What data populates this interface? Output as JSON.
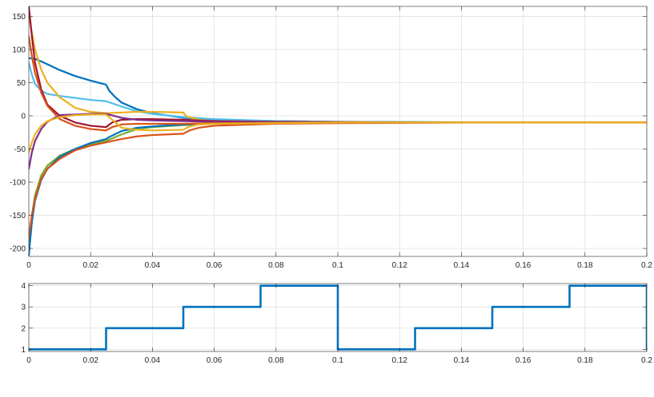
{
  "chart_data": [
    {
      "type": "line",
      "title": "",
      "xlabel": "",
      "ylabel": "",
      "xlim": [
        0,
        0.2
      ],
      "ylim": [
        -212,
        165
      ],
      "grid": true,
      "x_ticks": [
        0,
        0.02,
        0.04,
        0.06,
        0.08,
        0.1,
        0.12,
        0.14,
        0.16,
        0.18,
        0.2
      ],
      "x_tick_labels": [
        "0",
        "0.02",
        "0.04",
        "0.06",
        "0.08",
        "0.1",
        "0.12",
        "0.14",
        "0.16",
        "0.18",
        "0.2"
      ],
      "y_ticks": [
        -200,
        -150,
        -100,
        -50,
        0,
        50,
        100,
        150
      ],
      "y_tick_labels": [
        "-200",
        "-150",
        "-100",
        "-50",
        "0",
        "50",
        "100",
        "150"
      ],
      "series": [
        {
          "color": "#0072BD",
          "x": [
            0,
            0.002,
            0.005,
            0.01,
            0.015,
            0.02,
            0.025,
            0.026,
            0.028,
            0.03,
            0.035,
            0.04,
            0.05,
            0.06,
            0.08,
            0.1,
            0.15,
            0.2
          ],
          "y": [
            87,
            86,
            80,
            69,
            60,
            53,
            47,
            38,
            28,
            20,
            10,
            4,
            -3,
            -6,
            -8,
            -9,
            -10,
            -10
          ]
        },
        {
          "color": "#4DBEEE",
          "x": [
            0,
            0.001,
            0.002,
            0.004,
            0.006,
            0.01,
            0.015,
            0.02,
            0.025,
            0.03,
            0.035,
            0.04,
            0.05,
            0.06,
            0.08,
            0.1,
            0.15,
            0.2
          ],
          "y": [
            80,
            62,
            48,
            38,
            33,
            30,
            27,
            24,
            22,
            14,
            7,
            3,
            -2,
            -5,
            -8,
            -9,
            -10,
            -10
          ]
        },
        {
          "color": "#EDB120",
          "x": [
            0,
            0.001,
            0.002,
            0.004,
            0.006,
            0.01,
            0.015,
            0.02,
            0.025,
            0.03,
            0.035,
            0.04,
            0.05,
            0.051,
            0.055,
            0.06,
            0.08,
            0.1,
            0.15,
            0.2
          ],
          "y": [
            150,
            125,
            100,
            70,
            50,
            28,
            12,
            6,
            4,
            5,
            6,
            6,
            5,
            -1,
            -6,
            -8,
            -9,
            -9.5,
            -10,
            -10
          ]
        },
        {
          "color": "#A2142F",
          "x": [
            0,
            0.001,
            0.002,
            0.004,
            0.006,
            0.01,
            0.015,
            0.02,
            0.025,
            0.027,
            0.03,
            0.035,
            0.04,
            0.05,
            0.06,
            0.08,
            0.1,
            0.15,
            0.2
          ],
          "y": [
            165,
            120,
            80,
            40,
            17,
            0,
            -10,
            -15,
            -17,
            -10,
            -6,
            -5,
            -5,
            -6,
            -8,
            -9,
            -9.5,
            -10,
            -10
          ]
        },
        {
          "color": "#7E2F8E",
          "x": [
            0,
            0.001,
            0.002,
            0.004,
            0.006,
            0.01,
            0.015,
            0.02,
            0.025,
            0.03,
            0.035,
            0.04,
            0.05,
            0.06,
            0.08,
            0.1,
            0.15,
            0.2
          ],
          "y": [
            -80,
            -55,
            -38,
            -20,
            -9,
            1,
            2,
            3,
            3,
            -3,
            -6,
            -7,
            -8,
            -9,
            -9.5,
            -10,
            -10,
            -10
          ]
        },
        {
          "color": "#77AC30",
          "x": [
            0,
            0.001,
            0.002,
            0.004,
            0.006,
            0.01,
            0.015,
            0.02,
            0.025,
            0.03,
            0.035,
            0.04,
            0.05,
            0.06,
            0.08,
            0.1,
            0.15,
            0.2
          ],
          "y": [
            -190,
            -150,
            -120,
            -90,
            -75,
            -60,
            -50,
            -43,
            -38,
            -28,
            -20,
            -17,
            -14,
            -12,
            -11,
            -10,
            -10,
            -10
          ]
        },
        {
          "color": "#0072BD",
          "x": [
            0,
            0.001,
            0.002,
            0.004,
            0.006,
            0.01,
            0.015,
            0.02,
            0.025,
            0.026,
            0.03,
            0.035,
            0.04,
            0.05,
            0.06,
            0.08,
            0.1,
            0.15,
            0.2
          ],
          "y": [
            -210,
            -160,
            -128,
            -97,
            -80,
            -62,
            -50,
            -41,
            -35,
            -32,
            -23,
            -18,
            -16,
            -13,
            -12,
            -11,
            -10,
            -10,
            -10
          ]
        },
        {
          "color": "#D95319",
          "x": [
            0,
            0.001,
            0.002,
            0.004,
            0.006,
            0.01,
            0.015,
            0.02,
            0.025,
            0.03,
            0.035,
            0.04,
            0.045,
            0.05,
            0.052,
            0.055,
            0.06,
            0.08,
            0.1,
            0.15,
            0.2
          ],
          "y": [
            -183,
            -150,
            -125,
            -95,
            -80,
            -65,
            -52,
            -45,
            -40,
            -35,
            -31,
            -29,
            -28,
            -27,
            -22,
            -18,
            -15,
            -12,
            -11,
            -10,
            -10
          ]
        },
        {
          "color": "#D95319",
          "x": [
            0,
            0.001,
            0.002,
            0.004,
            0.006,
            0.01,
            0.015,
            0.02,
            0.025,
            0.027,
            0.03,
            0.035,
            0.04,
            0.05,
            0.06,
            0.08,
            0.1,
            0.15,
            0.2
          ],
          "y": [
            120,
            90,
            65,
            35,
            15,
            -5,
            -15,
            -20,
            -22,
            -17,
            -13,
            -12,
            -12,
            -12,
            -11,
            -10.5,
            -10,
            -10,
            -10
          ]
        },
        {
          "color": "#EDB120",
          "x": [
            0,
            0.001,
            0.002,
            0.004,
            0.006,
            0.01,
            0.015,
            0.02,
            0.025,
            0.03,
            0.035,
            0.04,
            0.05,
            0.052,
            0.055,
            0.06,
            0.08,
            0.1,
            0.15,
            0.2
          ],
          "y": [
            -55,
            -40,
            -28,
            -15,
            -8,
            -2,
            1,
            2,
            2,
            -18,
            -21,
            -22,
            -21,
            -16,
            -13,
            -12,
            -11,
            -10,
            -10,
            -10
          ]
        }
      ]
    },
    {
      "type": "line",
      "title": "",
      "xlabel": "",
      "ylabel": "",
      "xlim": [
        0,
        0.2
      ],
      "ylim": [
        0.9,
        4.1
      ],
      "grid": true,
      "x_ticks": [
        0,
        0.02,
        0.04,
        0.06,
        0.08,
        0.1,
        0.12,
        0.14,
        0.16,
        0.18,
        0.2
      ],
      "x_tick_labels": [
        "0",
        "0.02",
        "0.04",
        "0.06",
        "0.08",
        "0.1",
        "0.12",
        "0.14",
        "0.16",
        "0.18",
        "0.2"
      ],
      "y_ticks": [
        1,
        2,
        3,
        4
      ],
      "y_tick_labels": [
        "1",
        "2",
        "3",
        "4"
      ],
      "series": [
        {
          "color": "#0072BD",
          "step": true,
          "x": [
            0,
            0.025,
            0.025,
            0.05,
            0.05,
            0.075,
            0.075,
            0.1,
            0.1,
            0.125,
            0.125,
            0.15,
            0.15,
            0.175,
            0.175,
            0.2,
            0.2
          ],
          "y": [
            1,
            1,
            2,
            2,
            3,
            3,
            4,
            4,
            1,
            1,
            2,
            2,
            3,
            3,
            4,
            4,
            1
          ]
        }
      ]
    }
  ]
}
